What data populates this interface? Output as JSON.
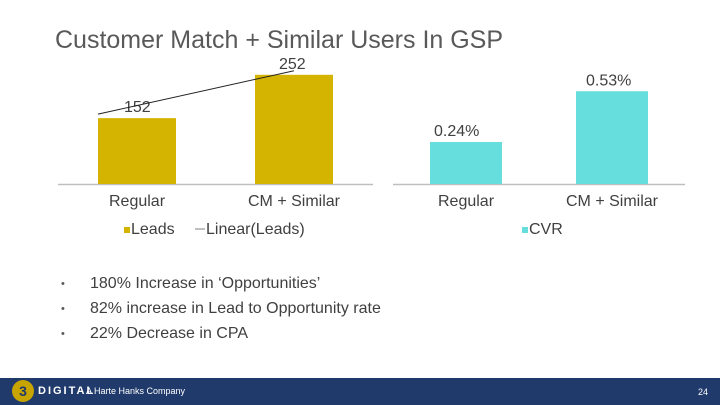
{
  "slide": {
    "title": "Customer Match + Similar Users In GSP",
    "bullets": [
      "180% Increase in ‘Opportunities’",
      "82% increase in Lead to Opportunity rate",
      "22% Decrease in CPA"
    ],
    "bullet_marker": "•"
  },
  "footer": {
    "logo_mark": "3",
    "logo_text": "DIGITAL",
    "tagline": "A Harte Hanks Company",
    "page_number": "24"
  },
  "colors": {
    "leads_bar": "#d4b400",
    "cvr_bar": "#66dede",
    "footer_bg": "#1f3a6b"
  },
  "chart_data": [
    {
      "type": "bar",
      "categories": [
        "Regular",
        "CM + Similar"
      ],
      "series": [
        {
          "name": "Leads",
          "values": [
            152,
            252
          ]
        }
      ],
      "data_labels": [
        "152",
        "252"
      ],
      "trendline": {
        "name": "Linear(Leads)",
        "type": "linear"
      },
      "legend": [
        "Leads",
        "Linear(Leads)"
      ],
      "legend_position": "bottom",
      "ylim": [
        0,
        300
      ],
      "grid": false
    },
    {
      "type": "bar",
      "categories": [
        "Regular",
        "CM + Similar"
      ],
      "series": [
        {
          "name": "CVR",
          "values": [
            0.24,
            0.53
          ]
        }
      ],
      "data_labels": [
        "0.24%",
        "0.53%"
      ],
      "legend": [
        "CVR"
      ],
      "legend_position": "bottom",
      "ylim": [
        0,
        0.6
      ],
      "grid": false
    }
  ]
}
